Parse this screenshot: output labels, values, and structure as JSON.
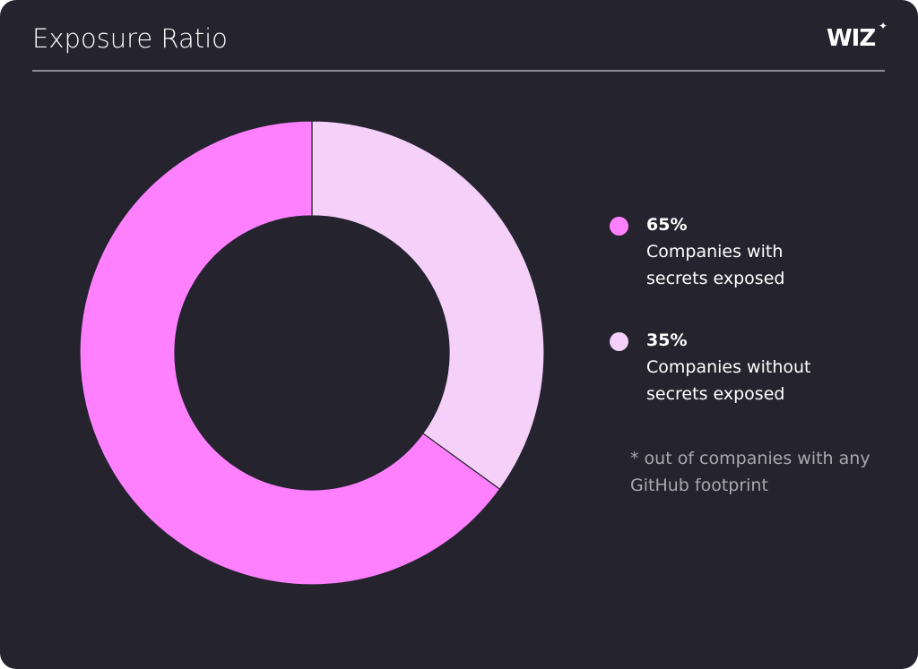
{
  "header": {
    "title": "Exposure Ratio",
    "logo": "WIZ"
  },
  "chart_data": {
    "type": "pie",
    "subtype": "donut",
    "slices": [
      {
        "label": "Companies with secrets exposed",
        "value": 65,
        "value_label": "65%",
        "color": "#ff80ff"
      },
      {
        "label": "Companies without secrets exposed",
        "value": 35,
        "value_label": "35%",
        "color": "#f5d0f8"
      }
    ],
    "legend_placement": "right",
    "footnote": "* out of companies with any GitHub footprint"
  }
}
